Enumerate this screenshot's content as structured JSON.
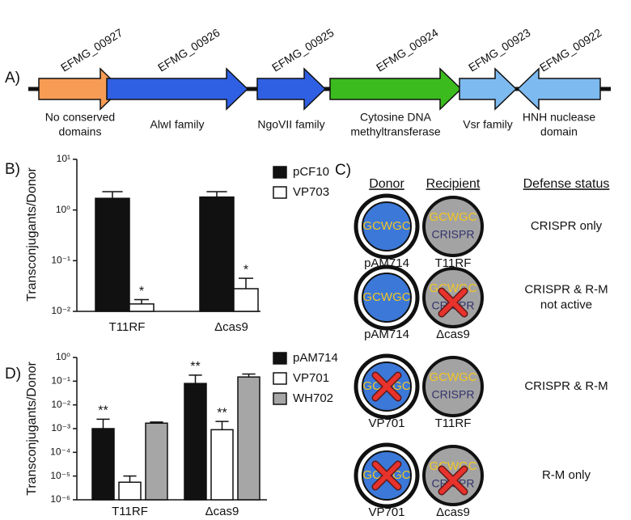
{
  "panel_a": {
    "label": "A)",
    "genes": [
      {
        "id": "EFMG_00927",
        "description": [
          "No conserved",
          "domains"
        ],
        "color": "#f79c55",
        "direction": "right"
      },
      {
        "id": "EFMG_00926",
        "description": [
          "AlwI family"
        ],
        "color": "#2f5fe3",
        "direction": "right"
      },
      {
        "id": "EFMG_00925",
        "description": [
          "NgoVII family"
        ],
        "color": "#2f5fe3",
        "direction": "right"
      },
      {
        "id": "EFMG_00924",
        "description": [
          "Cytosine DNA",
          "methyltransferase"
        ],
        "color": "#3cbb1f",
        "direction": "right"
      },
      {
        "id": "EFMG_00923",
        "description": [
          "Vsr family"
        ],
        "color": "#7dbaf0",
        "direction": "right"
      },
      {
        "id": "EFMG_00922",
        "description": [
          "HNH nuclease",
          "domain"
        ],
        "color": "#7dbaf0",
        "direction": "left"
      }
    ]
  },
  "chart_data": [
    {
      "type": "bar",
      "label": "B)",
      "y_label": "Transconjugants/Donor",
      "log_scale": true,
      "categories": [
        "T11RF",
        "Δcas9"
      ],
      "ylim": [
        0.01,
        10
      ],
      "yticks": [
        {
          "value": 10,
          "label": "10¹"
        },
        {
          "value": 1,
          "label": "10⁰"
        },
        {
          "value": 0.1,
          "label": "10⁻¹"
        },
        {
          "value": 0.01,
          "label": "10⁻²"
        }
      ],
      "legend": "upper right",
      "series": [
        {
          "name": "pCF10",
          "color": "#111111",
          "values": [
            1.7,
            1.8
          ],
          "errors": [
            0.6,
            0.5
          ],
          "significance": [
            null,
            null
          ]
        },
        {
          "name": "VP703",
          "color": "#ffffff",
          "values": [
            0.014,
            0.028
          ],
          "errors": [
            0.003,
            0.017
          ],
          "significance": [
            "*",
            "*"
          ]
        }
      ]
    },
    {
      "type": "bar",
      "label": "D)",
      "y_label": "Transconjugants/Donor",
      "log_scale": true,
      "categories": [
        "T11RF",
        "Δcas9"
      ],
      "ylim": [
        1e-06,
        1
      ],
      "yticks": [
        {
          "value": 1,
          "label": "10⁰"
        },
        {
          "value": 0.1,
          "label": "10⁻¹"
        },
        {
          "value": 0.01,
          "label": "10⁻²"
        },
        {
          "value": 0.001,
          "label": "10⁻³"
        },
        {
          "value": 0.0001,
          "label": "10⁻⁴"
        },
        {
          "value": 1e-05,
          "label": "10⁻⁵"
        },
        {
          "value": 1e-06,
          "label": "10⁻⁶"
        }
      ],
      "legend": "upper right",
      "series": [
        {
          "name": "pAM714",
          "color": "#111111",
          "values": [
            0.001,
            0.08
          ],
          "errors": [
            0.0015,
            0.1
          ],
          "significance": [
            "**",
            "**"
          ]
        },
        {
          "name": "VP701",
          "color": "#ffffff",
          "values": [
            5.5e-06,
            0.0009
          ],
          "errors": [
            4.5e-06,
            0.0011
          ],
          "significance": [
            null,
            "**"
          ]
        },
        {
          "name": "WH702",
          "color": "#a6a6a6",
          "values": [
            0.0017,
            0.15
          ],
          "errors": [
            0.0002,
            0.05
          ],
          "significance": [
            null,
            null
          ]
        }
      ]
    }
  ],
  "panel_c": {
    "label": "C)",
    "headers": [
      "Donor",
      "Recipient",
      "Defense status"
    ],
    "rows": [
      {
        "donor_site": "GCWGC",
        "donor": "pAM714",
        "donor_blocked": false,
        "recipient_site": "GCWGC",
        "recipient_system": "CRISPR",
        "recipient": "T11RF",
        "recipient_blocked": false,
        "status": [
          "CRISPR only"
        ]
      },
      {
        "donor_site": "GCWGC",
        "donor": "pAM714",
        "donor_blocked": false,
        "recipient_site": "GCWGC",
        "recipient_system": "CRISPR",
        "recipient": "Δcas9",
        "recipient_blocked": true,
        "status": [
          "CRISPR & R-M",
          "not active"
        ]
      },
      {
        "donor_site": "GCWGC",
        "donor": "VP701",
        "donor_blocked": true,
        "recipient_site": "GCWGC",
        "recipient_system": "CRISPR",
        "recipient": "T11RF",
        "recipient_blocked": false,
        "status": [
          "CRISPR & R-M"
        ]
      },
      {
        "donor_site": "GCWGC",
        "donor": "VP701",
        "donor_blocked": true,
        "recipient_site": "GCWGC",
        "recipient_system": "CRISPR",
        "recipient": "Δcas9",
        "recipient_blocked": true,
        "status": [
          "R-M only"
        ]
      }
    ]
  }
}
